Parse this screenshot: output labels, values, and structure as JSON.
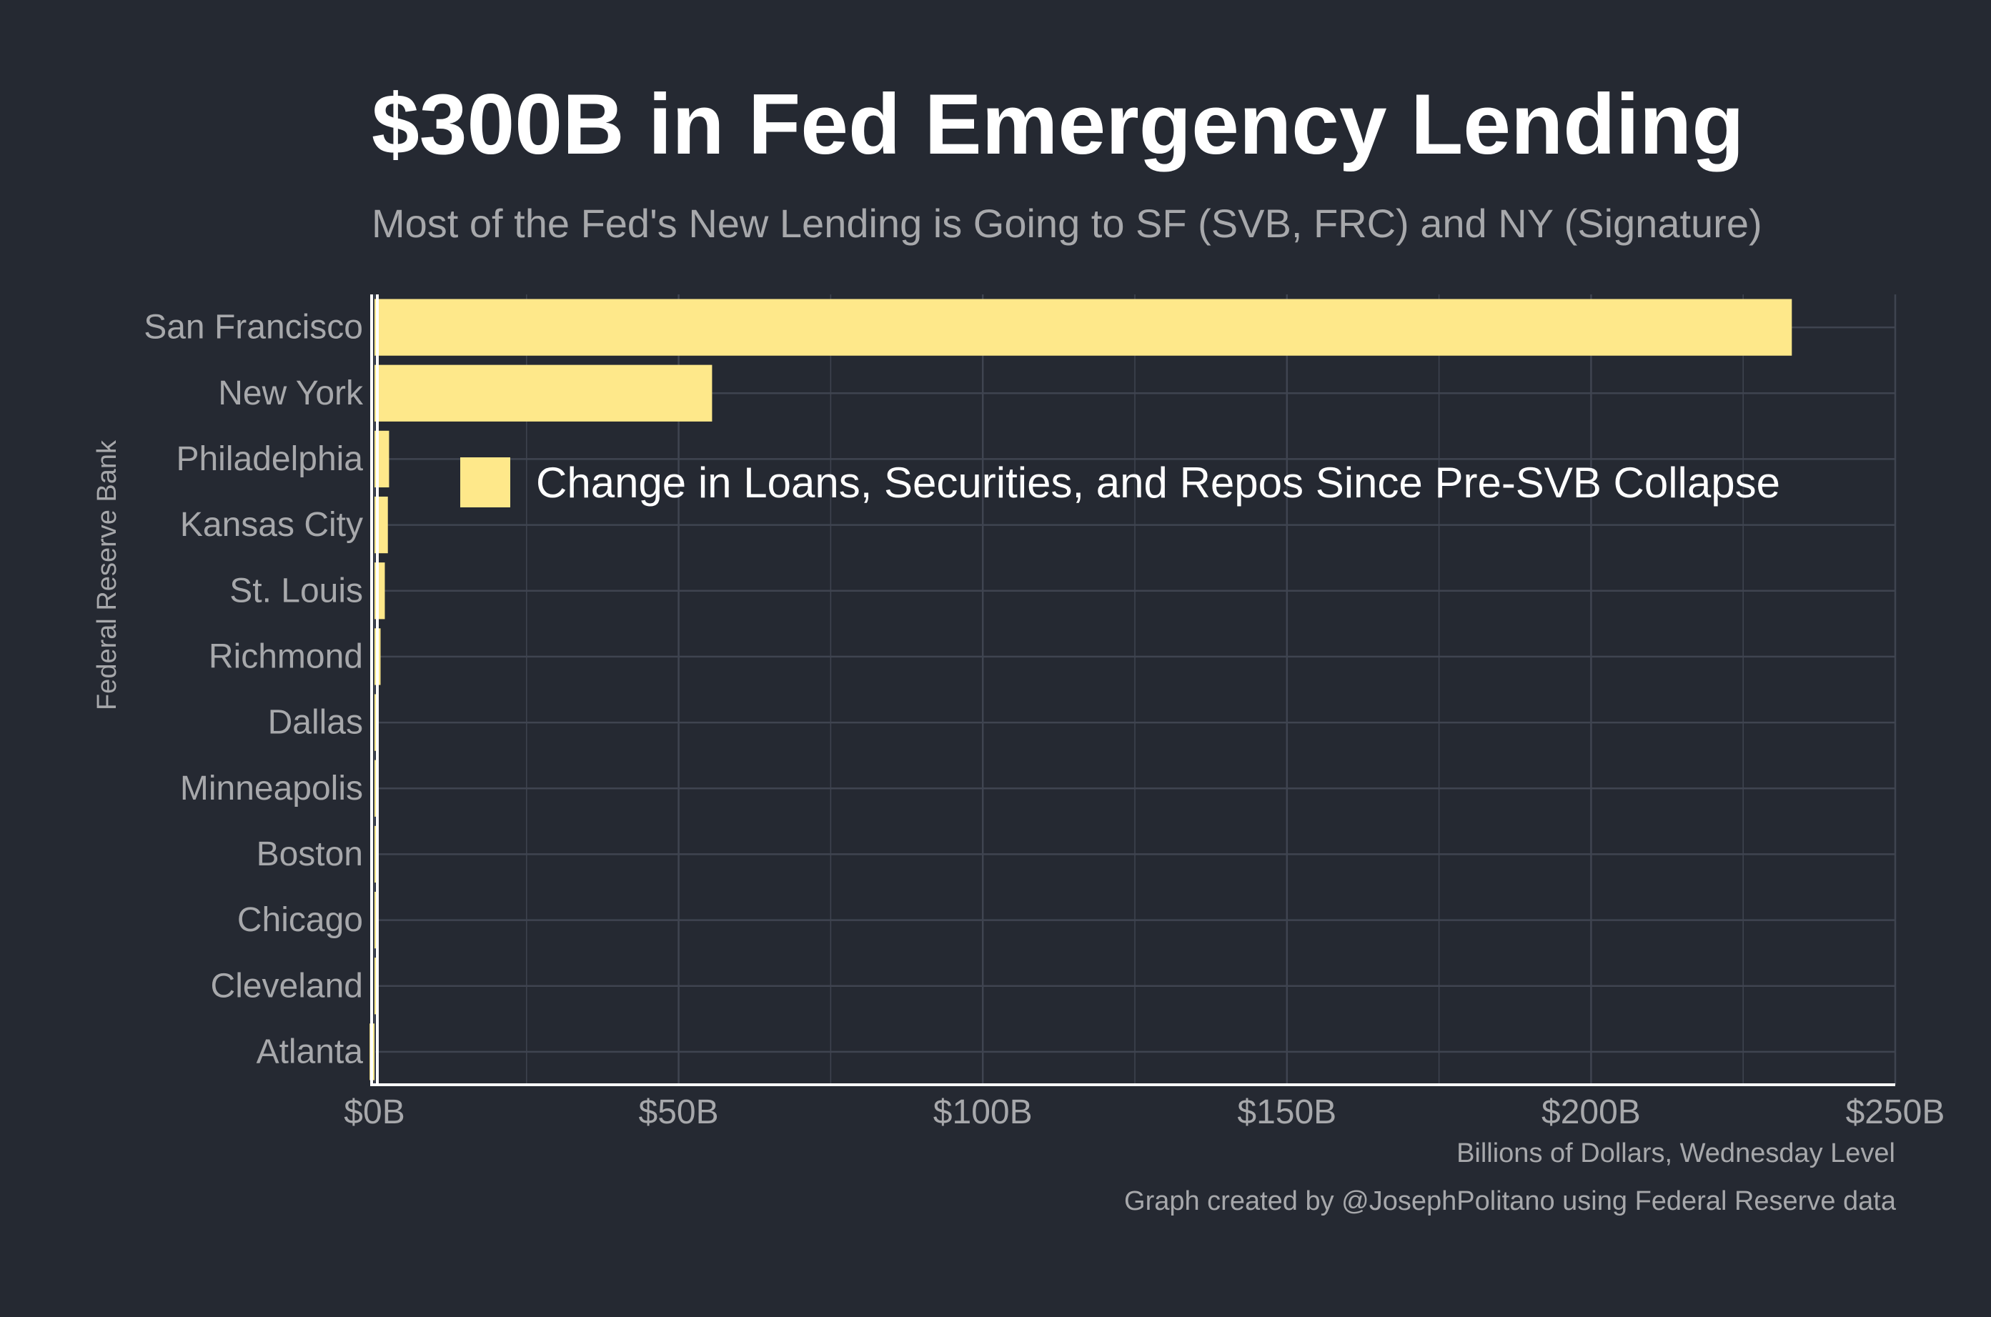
{
  "title": "$300B in Fed Emergency Lending",
  "subtitle": "Most of the Fed's New Lending is Going to SF (SVB, FRC) and NY (Signature)",
  "caption": "Graph created by @JosephPolitano using Federal Reserve data",
  "colors": {
    "background": "#252932",
    "bar": "#fee88a",
    "grid": "#3f4450",
    "axis_line": "#ffffff",
    "tick_text": "#a7a8ab"
  },
  "chart_data": {
    "type": "bar",
    "orientation": "horizontal",
    "title": "$300B in Fed Emergency Lending",
    "subtitle": "Most of the Fed's New Lending is Going to SF (SVB, FRC) and NY (Signature)",
    "xlabel": "Billions of Dollars, Wednesday Level",
    "ylabel": "Federal Reserve Bank",
    "categories": [
      "San Francisco",
      "New York",
      "Philadelphia",
      "Kansas City",
      "St. Louis",
      "Richmond",
      "Dallas",
      "Minneapolis",
      "Boston",
      "Chicago",
      "Cleveland",
      "Atlanta"
    ],
    "series": [
      {
        "name": "Change in Loans, Securities, and Repos Since Pre-SVB Collapse",
        "values": [
          233,
          55.5,
          2.4,
          2.2,
          1.7,
          1.0,
          0.4,
          0.3,
          0.2,
          0.2,
          0.5,
          -0.8
        ]
      }
    ],
    "xlim": [
      0,
      250
    ],
    "xticks": [
      0,
      50,
      100,
      150,
      200,
      250
    ],
    "xtick_labels": [
      "$0B",
      "$50B",
      "$100B",
      "$150B",
      "$200B",
      "$250B"
    ],
    "grid": true,
    "legend_position": "inside-top"
  }
}
